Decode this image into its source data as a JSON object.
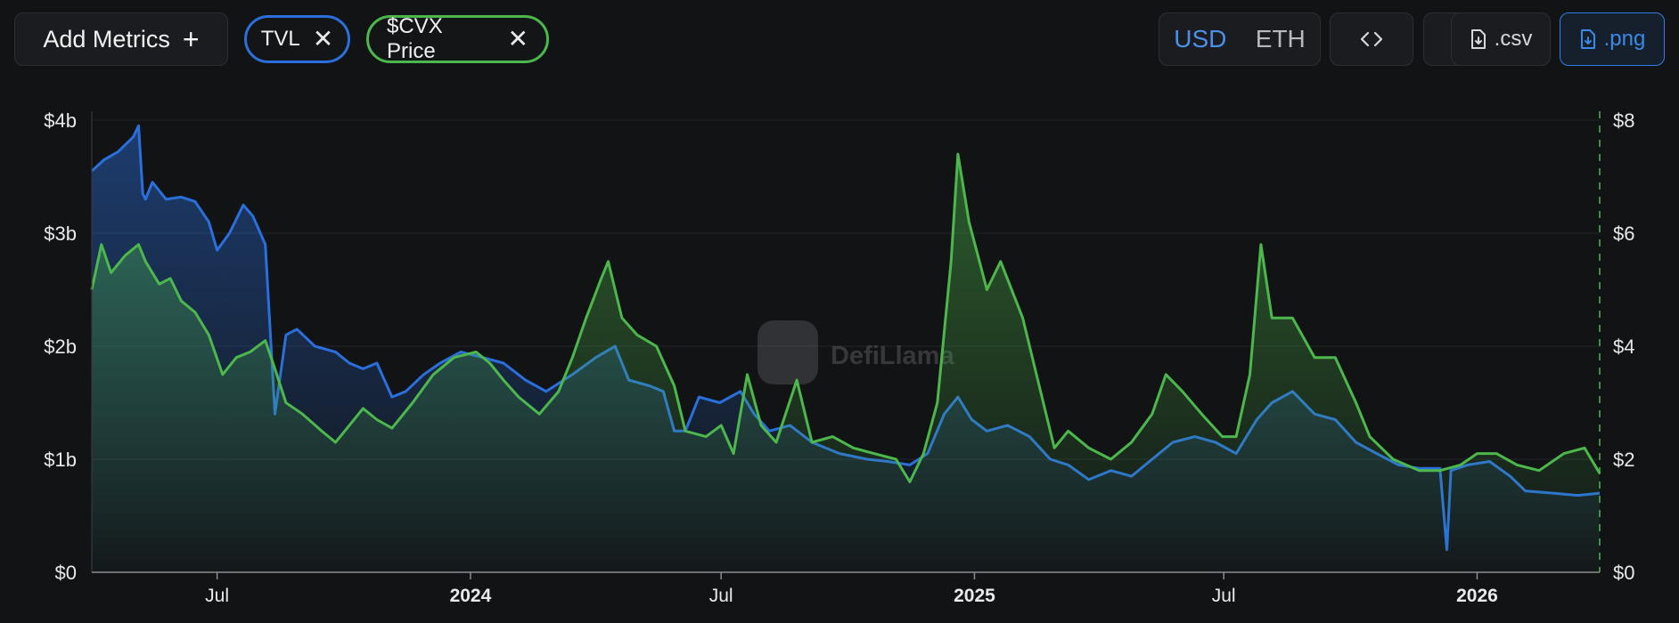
{
  "toolbar": {
    "add_metrics_label": "Add Metrics",
    "add_metrics_icon": "plus-icon",
    "pills": [
      {
        "label": "TVL",
        "color": "#2a6fdb",
        "close_icon": "close-icon"
      },
      {
        "label": "$CVX Price",
        "color": "#4cb84c",
        "close_icon": "close-icon"
      }
    ],
    "currency_options": [
      "USD",
      "ETH"
    ],
    "selected_currency": "USD",
    "embed_icon": "code-brackets-icon",
    "add_icon": "plus-icon",
    "csv_label": ".csv",
    "png_label": ".png",
    "download_icon": "file-download-icon"
  },
  "watermark": {
    "text": "DefiLlama"
  },
  "chart_data": {
    "type": "area",
    "x_range": [
      "2023-04-01",
      "2026-03-31"
    ],
    "x_ticks": [
      {
        "date": "2023-07-01",
        "label": "Jul",
        "bold": false
      },
      {
        "date": "2024-01-01",
        "label": "2024",
        "bold": true
      },
      {
        "date": "2024-07-01",
        "label": "Jul",
        "bold": false
      },
      {
        "date": "2025-01-01",
        "label": "2025",
        "bold": true
      },
      {
        "date": "2025-07-01",
        "label": "Jul",
        "bold": false
      },
      {
        "date": "2026-01-01",
        "label": "2026",
        "bold": true
      }
    ],
    "y_left": {
      "label": "",
      "ticks": [
        "$0",
        "$1b",
        "$2b",
        "$3b",
        "$4b"
      ],
      "range": [
        0,
        4
      ],
      "unit": "billion USD"
    },
    "y_right": {
      "label": "",
      "ticks": [
        "$0",
        "$2",
        "$4",
        "$6",
        "$8"
      ],
      "range": [
        0,
        8
      ],
      "unit": "USD"
    },
    "grid": true,
    "series": [
      {
        "name": "TVL",
        "axis": "left",
        "color": "#2a6fdb",
        "points": [
          [
            "2023-04-01",
            3.55
          ],
          [
            "2023-04-10",
            3.65
          ],
          [
            "2023-04-20",
            3.72
          ],
          [
            "2023-05-01",
            3.85
          ],
          [
            "2023-05-05",
            3.95
          ],
          [
            "2023-05-08",
            3.35
          ],
          [
            "2023-05-10",
            3.3
          ],
          [
            "2023-05-15",
            3.45
          ],
          [
            "2023-05-25",
            3.3
          ],
          [
            "2023-06-05",
            3.32
          ],
          [
            "2023-06-15",
            3.28
          ],
          [
            "2023-06-25",
            3.1
          ],
          [
            "2023-07-01",
            2.85
          ],
          [
            "2023-07-10",
            3.0
          ],
          [
            "2023-07-20",
            3.25
          ],
          [
            "2023-07-27",
            3.15
          ],
          [
            "2023-08-05",
            2.9
          ],
          [
            "2023-08-12",
            1.4
          ],
          [
            "2023-08-20",
            2.1
          ],
          [
            "2023-08-28",
            2.15
          ],
          [
            "2023-09-10",
            2.0
          ],
          [
            "2023-09-25",
            1.95
          ],
          [
            "2023-10-05",
            1.85
          ],
          [
            "2023-10-15",
            1.8
          ],
          [
            "2023-10-25",
            1.85
          ],
          [
            "2023-11-05",
            1.55
          ],
          [
            "2023-11-15",
            1.6
          ],
          [
            "2023-11-28",
            1.75
          ],
          [
            "2023-12-10",
            1.85
          ],
          [
            "2023-12-25",
            1.95
          ],
          [
            "2024-01-10",
            1.9
          ],
          [
            "2024-01-25",
            1.85
          ],
          [
            "2024-02-10",
            1.7
          ],
          [
            "2024-02-25",
            1.6
          ],
          [
            "2024-03-15",
            1.75
          ],
          [
            "2024-04-01",
            1.9
          ],
          [
            "2024-04-15",
            2.0
          ],
          [
            "2024-04-25",
            1.7
          ],
          [
            "2024-05-10",
            1.65
          ],
          [
            "2024-05-20",
            1.6
          ],
          [
            "2024-05-28",
            1.25
          ],
          [
            "2024-06-05",
            1.25
          ],
          [
            "2024-06-15",
            1.55
          ],
          [
            "2024-06-30",
            1.5
          ],
          [
            "2024-07-15",
            1.6
          ],
          [
            "2024-07-25",
            1.4
          ],
          [
            "2024-08-05",
            1.25
          ],
          [
            "2024-08-20",
            1.3
          ],
          [
            "2024-09-05",
            1.15
          ],
          [
            "2024-09-25",
            1.05
          ],
          [
            "2024-10-15",
            1.0
          ],
          [
            "2024-10-30",
            0.98
          ],
          [
            "2024-11-15",
            0.95
          ],
          [
            "2024-11-28",
            1.05
          ],
          [
            "2024-12-10",
            1.4
          ],
          [
            "2024-12-20",
            1.55
          ],
          [
            "2024-12-30",
            1.35
          ],
          [
            "2025-01-10",
            1.25
          ],
          [
            "2025-01-25",
            1.3
          ],
          [
            "2025-02-10",
            1.2
          ],
          [
            "2025-02-25",
            1.0
          ],
          [
            "2025-03-10",
            0.95
          ],
          [
            "2025-03-25",
            0.82
          ],
          [
            "2025-04-10",
            0.9
          ],
          [
            "2025-04-25",
            0.85
          ],
          [
            "2025-05-10",
            1.0
          ],
          [
            "2025-05-25",
            1.15
          ],
          [
            "2025-06-10",
            1.2
          ],
          [
            "2025-06-25",
            1.15
          ],
          [
            "2025-07-10",
            1.05
          ],
          [
            "2025-07-25",
            1.35
          ],
          [
            "2025-08-05",
            1.5
          ],
          [
            "2025-08-20",
            1.6
          ],
          [
            "2025-09-05",
            1.4
          ],
          [
            "2025-09-20",
            1.35
          ],
          [
            "2025-10-05",
            1.15
          ],
          [
            "2025-10-20",
            1.05
          ],
          [
            "2025-11-05",
            0.95
          ],
          [
            "2025-11-20",
            0.92
          ],
          [
            "2025-12-05",
            0.92
          ],
          [
            "2025-12-10",
            0.2
          ],
          [
            "2025-12-13",
            0.9
          ],
          [
            "2025-12-25",
            0.95
          ],
          [
            "2026-01-10",
            0.98
          ],
          [
            "2026-01-25",
            0.85
          ],
          [
            "2026-02-05",
            0.72
          ],
          [
            "2026-02-25",
            0.7
          ],
          [
            "2026-03-15",
            0.68
          ],
          [
            "2026-03-31",
            0.7
          ]
        ]
      },
      {
        "name": "$CVX Price",
        "axis": "right",
        "color": "#4cb84c",
        "points": [
          [
            "2023-04-01",
            5.0
          ],
          [
            "2023-04-08",
            5.8
          ],
          [
            "2023-04-15",
            5.3
          ],
          [
            "2023-04-25",
            5.6
          ],
          [
            "2023-05-05",
            5.8
          ],
          [
            "2023-05-10",
            5.5
          ],
          [
            "2023-05-20",
            5.1
          ],
          [
            "2023-05-28",
            5.2
          ],
          [
            "2023-06-05",
            4.8
          ],
          [
            "2023-06-15",
            4.6
          ],
          [
            "2023-06-25",
            4.2
          ],
          [
            "2023-07-05",
            3.5
          ],
          [
            "2023-07-15",
            3.8
          ],
          [
            "2023-07-25",
            3.9
          ],
          [
            "2023-08-05",
            4.1
          ],
          [
            "2023-08-12",
            3.6
          ],
          [
            "2023-08-20",
            3.0
          ],
          [
            "2023-09-01",
            2.8
          ],
          [
            "2023-09-15",
            2.5
          ],
          [
            "2023-09-25",
            2.3
          ],
          [
            "2023-10-05",
            2.6
          ],
          [
            "2023-10-15",
            2.9
          ],
          [
            "2023-10-25",
            2.7
          ],
          [
            "2023-11-05",
            2.55
          ],
          [
            "2023-11-20",
            3.0
          ],
          [
            "2023-12-05",
            3.5
          ],
          [
            "2023-12-20",
            3.8
          ],
          [
            "2024-01-05",
            3.9
          ],
          [
            "2024-01-15",
            3.7
          ],
          [
            "2024-01-25",
            3.4
          ],
          [
            "2024-02-05",
            3.1
          ],
          [
            "2024-02-20",
            2.8
          ],
          [
            "2024-03-05",
            3.2
          ],
          [
            "2024-03-15",
            3.8
          ],
          [
            "2024-03-25",
            4.5
          ],
          [
            "2024-04-05",
            5.2
          ],
          [
            "2024-04-10",
            5.5
          ],
          [
            "2024-04-20",
            4.5
          ],
          [
            "2024-05-01",
            4.2
          ],
          [
            "2024-05-15",
            4.0
          ],
          [
            "2024-05-28",
            3.3
          ],
          [
            "2024-06-05",
            2.5
          ],
          [
            "2024-06-20",
            2.4
          ],
          [
            "2024-07-01",
            2.6
          ],
          [
            "2024-07-10",
            2.1
          ],
          [
            "2024-07-20",
            3.5
          ],
          [
            "2024-07-30",
            2.6
          ],
          [
            "2024-08-10",
            2.3
          ],
          [
            "2024-08-25",
            3.4
          ],
          [
            "2024-09-05",
            2.3
          ],
          [
            "2024-09-20",
            2.4
          ],
          [
            "2024-10-05",
            2.2
          ],
          [
            "2024-10-20",
            2.1
          ],
          [
            "2024-11-05",
            2.0
          ],
          [
            "2024-11-15",
            1.6
          ],
          [
            "2024-11-25",
            2.1
          ],
          [
            "2024-12-05",
            3.0
          ],
          [
            "2024-12-15",
            5.5
          ],
          [
            "2024-12-20",
            7.4
          ],
          [
            "2024-12-28",
            6.2
          ],
          [
            "2025-01-10",
            5.0
          ],
          [
            "2025-01-20",
            5.5
          ],
          [
            "2025-02-05",
            4.5
          ],
          [
            "2025-02-15",
            3.5
          ],
          [
            "2025-02-28",
            2.2
          ],
          [
            "2025-03-10",
            2.5
          ],
          [
            "2025-03-25",
            2.2
          ],
          [
            "2025-04-10",
            2.0
          ],
          [
            "2025-04-25",
            2.3
          ],
          [
            "2025-05-10",
            2.8
          ],
          [
            "2025-05-20",
            3.5
          ],
          [
            "2025-06-01",
            3.2
          ],
          [
            "2025-06-15",
            2.8
          ],
          [
            "2025-06-30",
            2.4
          ],
          [
            "2025-07-10",
            2.4
          ],
          [
            "2025-07-20",
            3.5
          ],
          [
            "2025-07-28",
            5.8
          ],
          [
            "2025-08-05",
            4.5
          ],
          [
            "2025-08-20",
            4.5
          ],
          [
            "2025-09-05",
            3.8
          ],
          [
            "2025-09-20",
            3.8
          ],
          [
            "2025-10-05",
            3.0
          ],
          [
            "2025-10-15",
            2.4
          ],
          [
            "2025-11-01",
            2.0
          ],
          [
            "2025-11-20",
            1.8
          ],
          [
            "2025-12-05",
            1.8
          ],
          [
            "2025-12-20",
            1.9
          ],
          [
            "2026-01-01",
            2.1
          ],
          [
            "2026-01-15",
            2.1
          ],
          [
            "2026-01-30",
            1.9
          ],
          [
            "2026-02-15",
            1.8
          ],
          [
            "2026-03-05",
            2.1
          ],
          [
            "2026-03-20",
            2.2
          ],
          [
            "2026-03-31",
            1.75
          ]
        ]
      }
    ]
  }
}
